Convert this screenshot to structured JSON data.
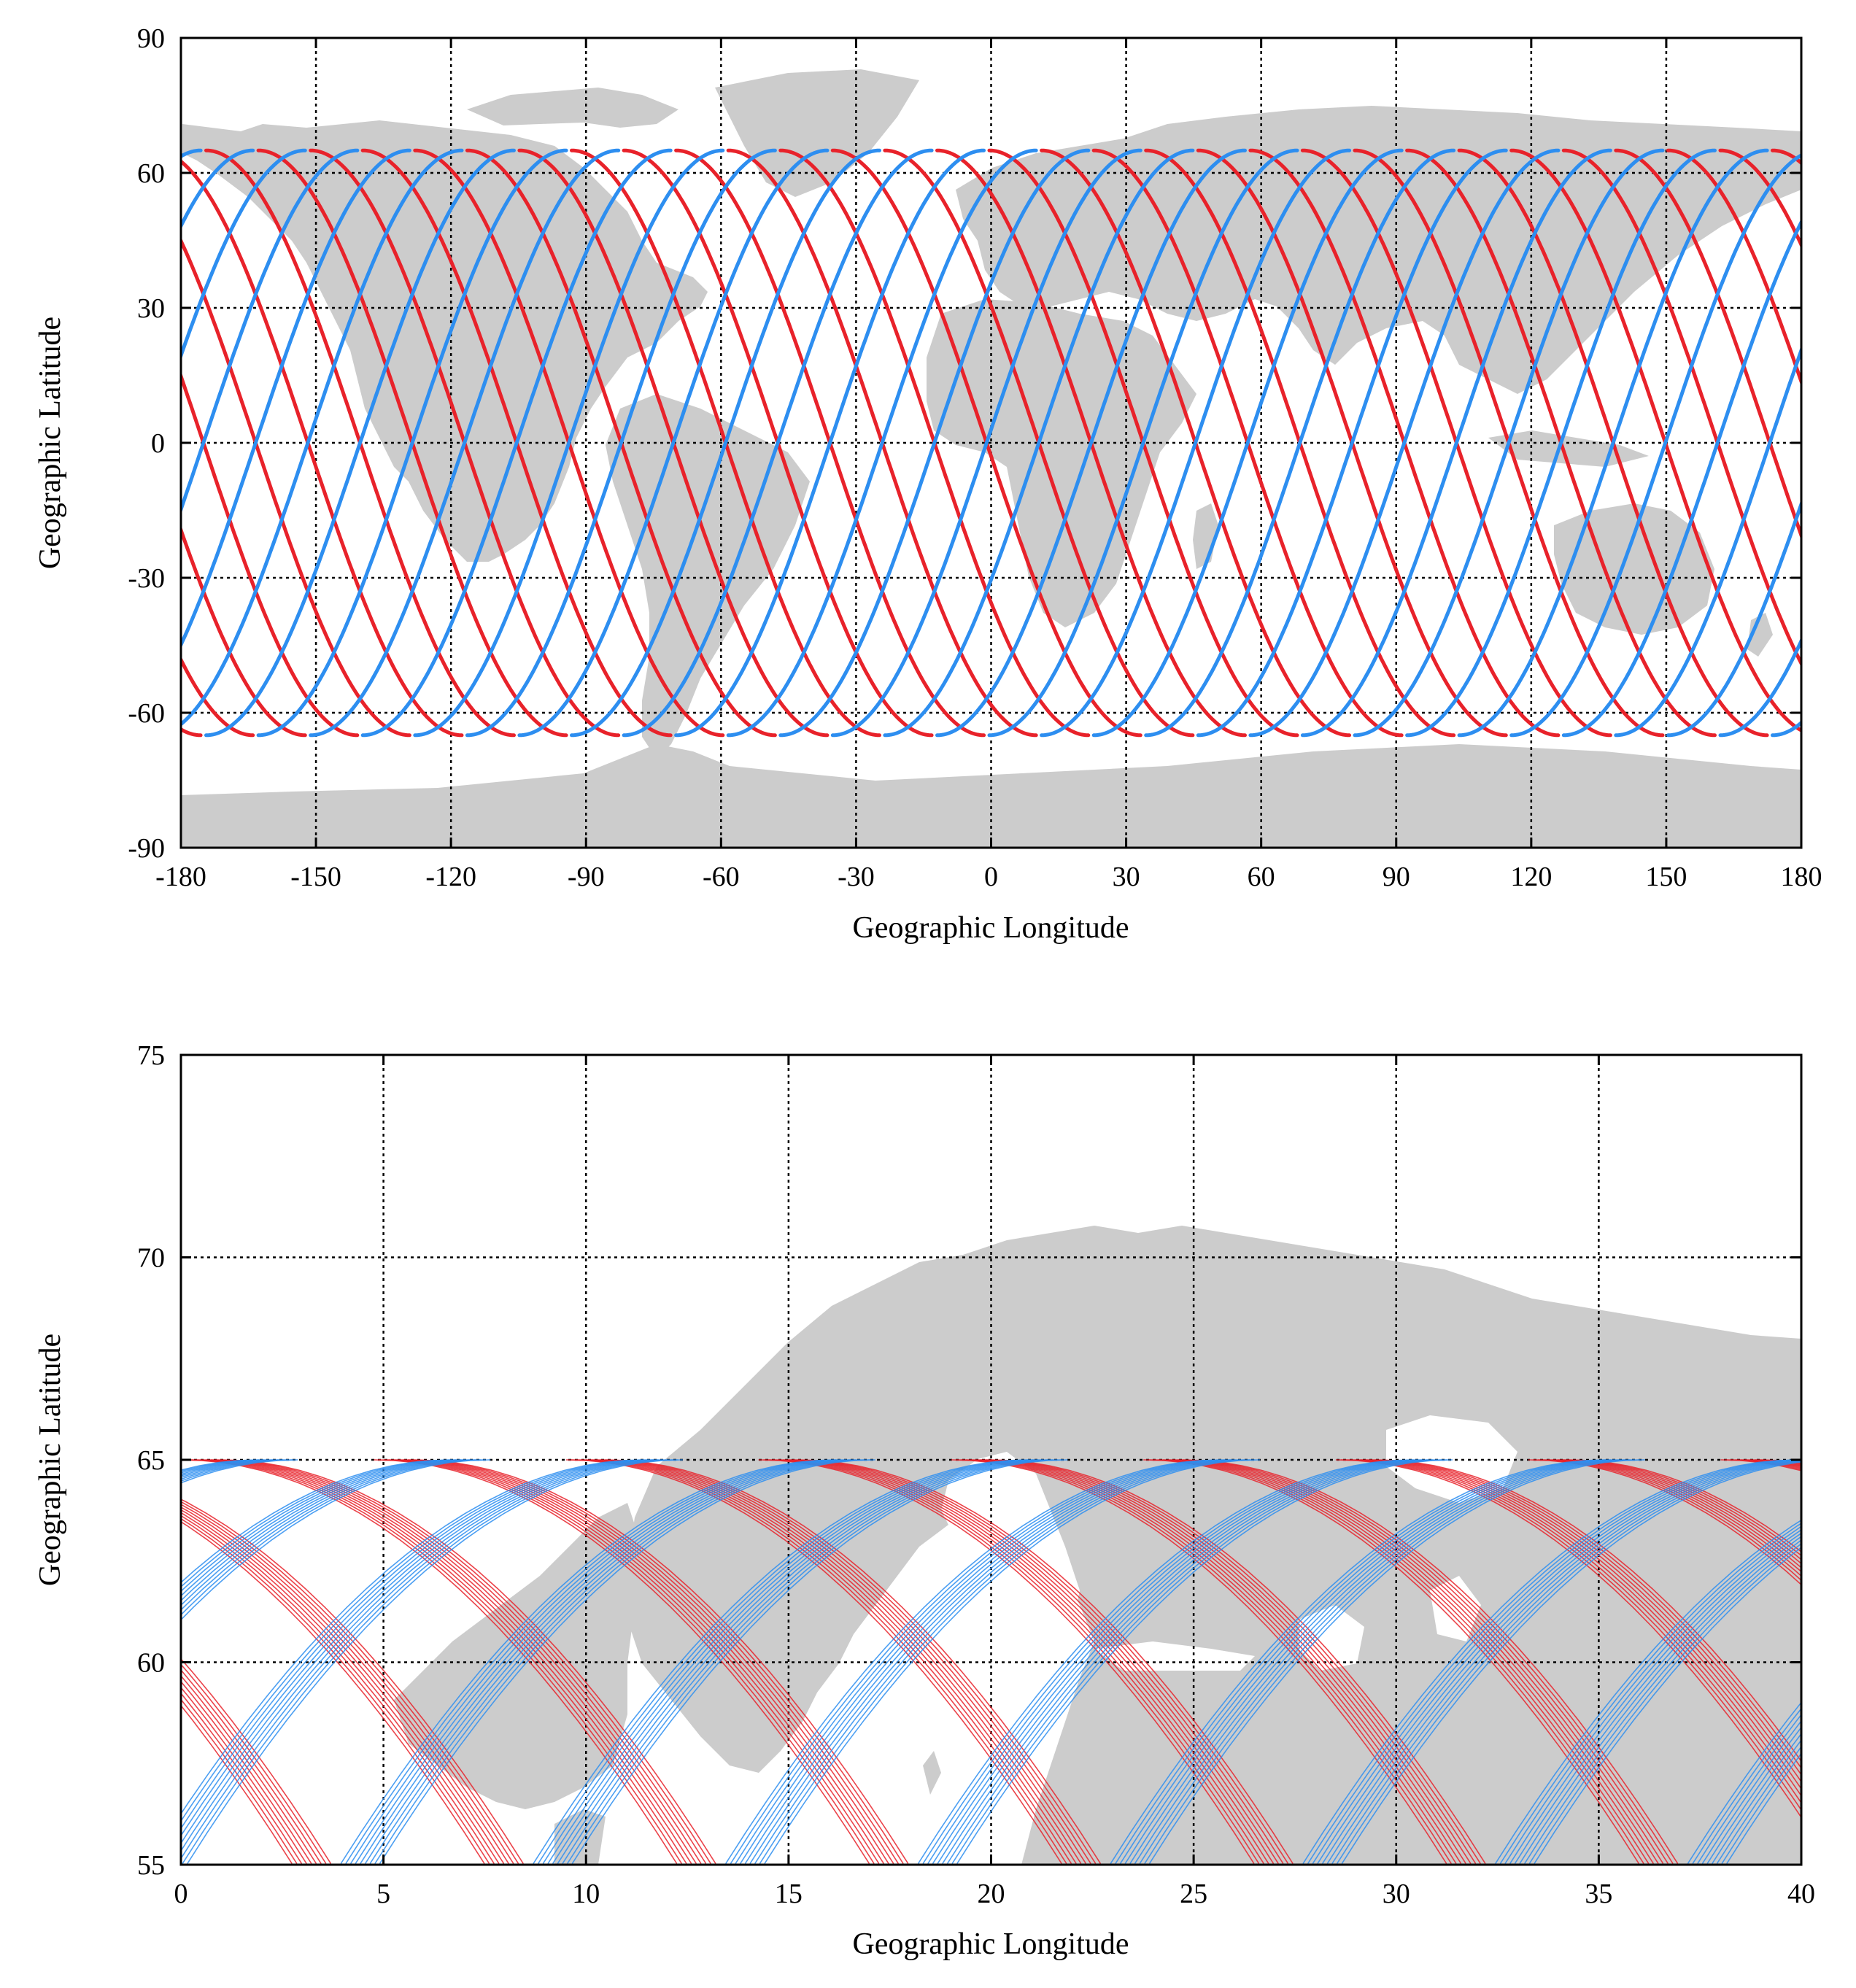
{
  "chart_data": [
    {
      "type": "line",
      "xlabel": "Geographic Longitude",
      "ylabel": "Geographic Latitude",
      "xlim": [
        -180,
        180
      ],
      "ylim": [
        -90,
        90
      ],
      "xticks": [
        "-180",
        "-150",
        "-120",
        "-90",
        "-60",
        "-30",
        "0",
        "30",
        "60",
        "90",
        "120",
        "150",
        "180"
      ],
      "yticks": [
        "90",
        "60",
        "30",
        "0",
        "-30",
        "-60",
        "-90"
      ],
      "grid": true,
      "background": "land map (gray)",
      "track_bounds": {
        "lat_min": -65,
        "lat_max": 65,
        "x_spacing": 11.6
      },
      "series": [
        {
          "color": "#e8222a",
          "direction": "descending",
          "values": []
        },
        {
          "color": "#2d8ef0",
          "direction": "ascending",
          "values": []
        }
      ]
    },
    {
      "type": "line",
      "xlabel": "Geographic Longitude",
      "ylabel": "Geographic Latitude",
      "xlim": [
        0,
        40
      ],
      "ylim": [
        55,
        75
      ],
      "xticks": [
        "0",
        "5",
        "10",
        "15",
        "20",
        "25",
        "30",
        "35",
        "40"
      ],
      "yticks": [
        "75",
        "70",
        "65",
        "60",
        "55"
      ],
      "grid": true,
      "background": "land map of northern Europe (gray)",
      "track_bounds": {
        "lat_min": 55,
        "lat_max": 65,
        "x_spacing": 4.75
      },
      "series": [
        {
          "color": "#e8222a",
          "direction": "descending",
          "values": []
        },
        {
          "color": "#2d8ef0",
          "direction": "ascending",
          "values": []
        }
      ]
    }
  ],
  "colors": {
    "land": "#cccccc",
    "descending": "#e8222a",
    "ascending": "#2d8ef0"
  }
}
